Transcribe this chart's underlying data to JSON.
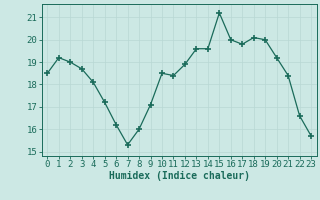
{
  "x": [
    0,
    1,
    2,
    3,
    4,
    5,
    6,
    7,
    8,
    9,
    10,
    11,
    12,
    13,
    14,
    15,
    16,
    17,
    18,
    19,
    20,
    21,
    22,
    23
  ],
  "y": [
    18.5,
    19.2,
    19.0,
    18.7,
    18.1,
    17.2,
    16.2,
    15.3,
    16.0,
    17.1,
    18.5,
    18.4,
    18.9,
    19.6,
    19.6,
    21.2,
    20.0,
    19.8,
    20.1,
    20.0,
    19.2,
    18.4,
    16.6,
    15.7
  ],
  "xlabel": "Humidex (Indice chaleur)",
  "ylim": [
    14.8,
    21.6
  ],
  "yticks": [
    15,
    16,
    17,
    18,
    19,
    20,
    21
  ],
  "xticks": [
    0,
    1,
    2,
    3,
    4,
    5,
    6,
    7,
    8,
    9,
    10,
    11,
    12,
    13,
    14,
    15,
    16,
    17,
    18,
    19,
    20,
    21,
    22,
    23
  ],
  "line_color": "#1a6b5a",
  "marker": "+",
  "marker_size": 4,
  "marker_lw": 1.2,
  "bg_color": "#cce8e4",
  "grid_color": "#b8d8d4",
  "tick_color": "#1a6b5a",
  "label_color": "#1a6b5a",
  "xlabel_fontsize": 7,
  "tick_fontsize": 6.5
}
